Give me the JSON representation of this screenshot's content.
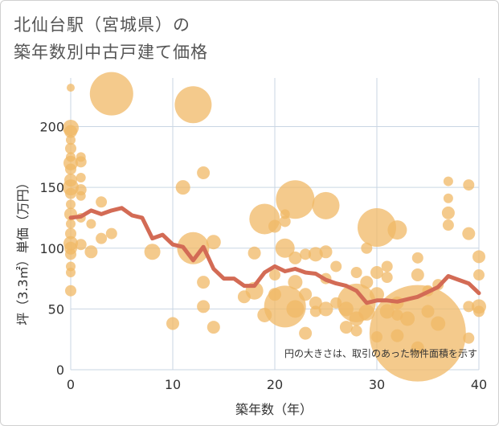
{
  "title_line1": "北仙台駅（宮城県）の",
  "title_line2": "築年数別中古戸建て価格",
  "chart_data": {
    "type": "scatter",
    "title": "北仙台駅（宮城県）の築年数別中古戸建て価格",
    "xlabel": "築年数（年）",
    "ylabel": "坪（3.3㎡）単価（万円）",
    "xlim": [
      0,
      40
    ],
    "ylim": [
      0,
      240
    ],
    "xticks": [
      0,
      10,
      20,
      30,
      40
    ],
    "yticks": [
      0,
      50,
      100,
      150,
      200
    ],
    "grid": true,
    "note": "円の大きさは、取引のあった物件面積を示す",
    "bubble_color": "#f0b866",
    "line_color": "#d36b55",
    "bubbles": [
      {
        "x": 0,
        "y": 232,
        "r": 5
      },
      {
        "x": 0,
        "y": 199,
        "r": 10
      },
      {
        "x": 0,
        "y": 196,
        "r": 8
      },
      {
        "x": 0,
        "y": 189,
        "r": 6
      },
      {
        "x": 0,
        "y": 182,
        "r": 7
      },
      {
        "x": 0,
        "y": 175,
        "r": 6
      },
      {
        "x": 0,
        "y": 170,
        "r": 9
      },
      {
        "x": 0,
        "y": 165,
        "r": 7
      },
      {
        "x": 0,
        "y": 156,
        "r": 8
      },
      {
        "x": 0,
        "y": 150,
        "r": 10
      },
      {
        "x": 0,
        "y": 145,
        "r": 7
      },
      {
        "x": 0,
        "y": 136,
        "r": 6
      },
      {
        "x": 0,
        "y": 128,
        "r": 8
      },
      {
        "x": 0,
        "y": 120,
        "r": 6
      },
      {
        "x": 0,
        "y": 112,
        "r": 7
      },
      {
        "x": 0,
        "y": 104,
        "r": 9
      },
      {
        "x": 0,
        "y": 100,
        "r": 8
      },
      {
        "x": 0,
        "y": 95,
        "r": 7
      },
      {
        "x": 0,
        "y": 85,
        "r": 6
      },
      {
        "x": 0,
        "y": 80,
        "r": 6
      },
      {
        "x": 0,
        "y": 65,
        "r": 7
      },
      {
        "x": 1,
        "y": 175,
        "r": 6
      },
      {
        "x": 1,
        "y": 171,
        "r": 7
      },
      {
        "x": 1,
        "y": 158,
        "r": 6
      },
      {
        "x": 1,
        "y": 148,
        "r": 7
      },
      {
        "x": 1,
        "y": 143,
        "r": 6
      },
      {
        "x": 1,
        "y": 125,
        "r": 6
      },
      {
        "x": 1,
        "y": 103,
        "r": 7
      },
      {
        "x": 2,
        "y": 120,
        "r": 6
      },
      {
        "x": 2,
        "y": 97,
        "r": 8
      },
      {
        "x": 3,
        "y": 138,
        "r": 7
      },
      {
        "x": 3,
        "y": 108,
        "r": 7
      },
      {
        "x": 4,
        "y": 227,
        "r": 27
      },
      {
        "x": 4,
        "y": 112,
        "r": 7
      },
      {
        "x": 8,
        "y": 97,
        "r": 10
      },
      {
        "x": 10,
        "y": 38,
        "r": 8
      },
      {
        "x": 11,
        "y": 150,
        "r": 9
      },
      {
        "x": 12,
        "y": 218,
        "r": 23
      },
      {
        "x": 12,
        "y": 100,
        "r": 20
      },
      {
        "x": 13,
        "y": 162,
        "r": 8
      },
      {
        "x": 13,
        "y": 72,
        "r": 8
      },
      {
        "x": 13,
        "y": 52,
        "r": 8
      },
      {
        "x": 14,
        "y": 105,
        "r": 9
      },
      {
        "x": 14,
        "y": 35,
        "r": 8
      },
      {
        "x": 17,
        "y": 60,
        "r": 8
      },
      {
        "x": 18,
        "y": 96,
        "r": 8
      },
      {
        "x": 18,
        "y": 65,
        "r": 11
      },
      {
        "x": 19,
        "y": 124,
        "r": 19
      },
      {
        "x": 19,
        "y": 45,
        "r": 9
      },
      {
        "x": 20,
        "y": 118,
        "r": 8
      },
      {
        "x": 20,
        "y": 78,
        "r": 7
      },
      {
        "x": 20,
        "y": 62,
        "r": 8
      },
      {
        "x": 21,
        "y": 100,
        "r": 12
      },
      {
        "x": 21,
        "y": 52,
        "r": 26
      },
      {
        "x": 21,
        "y": 122,
        "r": 7
      },
      {
        "x": 21,
        "y": 128,
        "r": 6
      },
      {
        "x": 22,
        "y": 140,
        "r": 24
      },
      {
        "x": 22,
        "y": 92,
        "r": 8
      },
      {
        "x": 22,
        "y": 72,
        "r": 9
      },
      {
        "x": 22,
        "y": 50,
        "r": 11
      },
      {
        "x": 23,
        "y": 95,
        "r": 7
      },
      {
        "x": 23,
        "y": 62,
        "r": 8
      },
      {
        "x": 23,
        "y": 30,
        "r": 8
      },
      {
        "x": 24,
        "y": 95,
        "r": 9
      },
      {
        "x": 24,
        "y": 55,
        "r": 8
      },
      {
        "x": 24,
        "y": 48,
        "r": 7
      },
      {
        "x": 25,
        "y": 135,
        "r": 17
      },
      {
        "x": 25,
        "y": 97,
        "r": 8
      },
      {
        "x": 25,
        "y": 75,
        "r": 7
      },
      {
        "x": 25,
        "y": 50,
        "r": 9
      },
      {
        "x": 26,
        "y": 85,
        "r": 7
      },
      {
        "x": 26,
        "y": 55,
        "r": 7
      },
      {
        "x": 27,
        "y": 50,
        "r": 9
      },
      {
        "x": 27,
        "y": 35,
        "r": 8
      },
      {
        "x": 28,
        "y": 80,
        "r": 7
      },
      {
        "x": 28,
        "y": 55,
        "r": 24
      },
      {
        "x": 28,
        "y": 42,
        "r": 9
      },
      {
        "x": 28,
        "y": 32,
        "r": 7
      },
      {
        "x": 29,
        "y": 100,
        "r": 7
      },
      {
        "x": 29,
        "y": 72,
        "r": 8
      },
      {
        "x": 29,
        "y": 47,
        "r": 10
      },
      {
        "x": 30,
        "y": 117,
        "r": 24
      },
      {
        "x": 30,
        "y": 80,
        "r": 8
      },
      {
        "x": 30,
        "y": 62,
        "r": 9
      },
      {
        "x": 30,
        "y": 27,
        "r": 7
      },
      {
        "x": 31,
        "y": 85,
        "r": 7
      },
      {
        "x": 31,
        "y": 76,
        "r": 7
      },
      {
        "x": 31,
        "y": 48,
        "r": 9
      },
      {
        "x": 32,
        "y": 115,
        "r": 12
      },
      {
        "x": 32,
        "y": 55,
        "r": 8
      },
      {
        "x": 32,
        "y": 45,
        "r": 7
      },
      {
        "x": 32,
        "y": 28,
        "r": 8
      },
      {
        "x": 33,
        "y": 42,
        "r": 9
      },
      {
        "x": 34,
        "y": 92,
        "r": 7
      },
      {
        "x": 34,
        "y": 78,
        "r": 8
      },
      {
        "x": 34,
        "y": 30,
        "r": 60
      },
      {
        "x": 34,
        "y": 18,
        "r": 8
      },
      {
        "x": 35,
        "y": 65,
        "r": 7
      },
      {
        "x": 35,
        "y": 48,
        "r": 8
      },
      {
        "x": 36,
        "y": 70,
        "r": 7
      },
      {
        "x": 36,
        "y": 38,
        "r": 9
      },
      {
        "x": 37,
        "y": 155,
        "r": 6
      },
      {
        "x": 37,
        "y": 141,
        "r": 6
      },
      {
        "x": 37,
        "y": 129,
        "r": 8
      },
      {
        "x": 37,
        "y": 119,
        "r": 7
      },
      {
        "x": 39,
        "y": 152,
        "r": 7
      },
      {
        "x": 39,
        "y": 112,
        "r": 8
      },
      {
        "x": 39,
        "y": 52,
        "r": 7
      },
      {
        "x": 39,
        "y": 26,
        "r": 7
      },
      {
        "x": 40,
        "y": 93,
        "r": 8
      },
      {
        "x": 40,
        "y": 78,
        "r": 7
      },
      {
        "x": 40,
        "y": 52,
        "r": 9
      },
      {
        "x": 40,
        "y": 48,
        "r": 7
      }
    ],
    "series": [
      {
        "x": [
          0,
          1,
          2,
          3,
          4,
          5,
          6,
          7,
          8,
          9,
          10,
          11,
          12,
          13,
          14,
          15,
          16,
          17,
          18,
          19,
          20,
          21,
          22,
          23,
          24,
          25,
          26,
          27,
          28,
          29,
          30,
          31,
          32,
          33,
          34,
          35,
          36,
          37,
          38,
          39,
          40
        ],
        "values": [
          125,
          126,
          131,
          128,
          131,
          133,
          127,
          125,
          108,
          111,
          103,
          101,
          90,
          101,
          83,
          75,
          75,
          69,
          69,
          80,
          85,
          81,
          83,
          80,
          79,
          74,
          71,
          69,
          65,
          55,
          57,
          57,
          56,
          58,
          60,
          64,
          68,
          77,
          74,
          71,
          63
        ]
      }
    ]
  }
}
